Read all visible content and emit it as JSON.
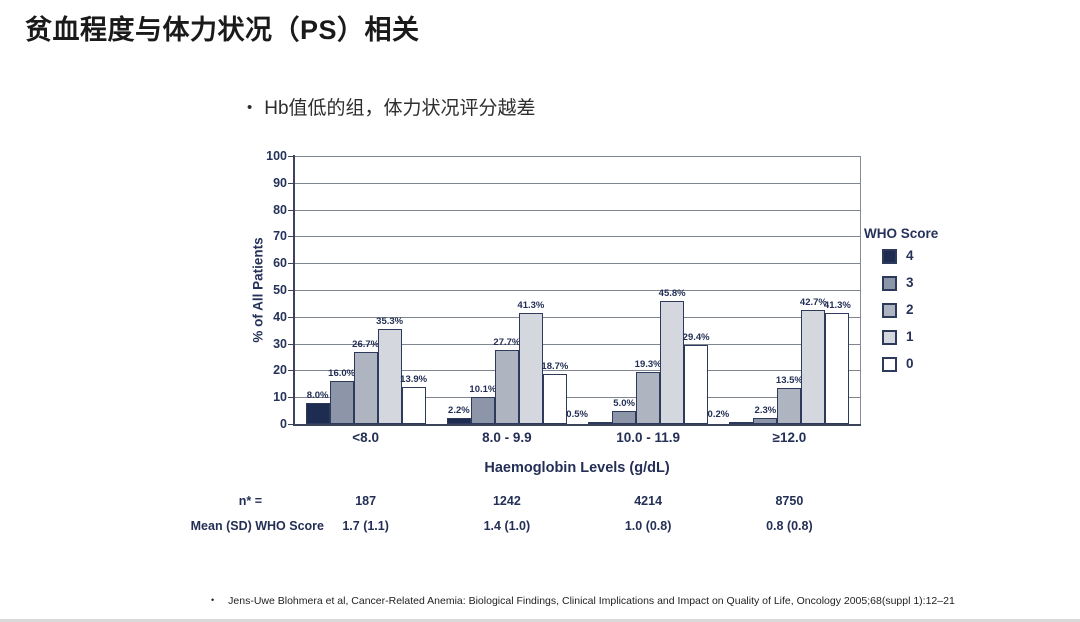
{
  "slide": {
    "title": "贫血程度与体力状况（PS）相关",
    "bullet_char": "•",
    "bullet": "Hb值低的组，体力状况评分越差"
  },
  "chart_data": {
    "type": "bar",
    "title": "",
    "xlabel": "Haemoglobin Levels (g/dL)",
    "ylabel": "% of All Patients",
    "ylim": [
      0,
      100
    ],
    "ytick_step": 10,
    "grid": true,
    "legend_title": "WHO Score",
    "legend_position": "right",
    "categories": [
      "<8.0",
      "8.0 - 9.9",
      "10.0 - 11.9",
      "≥12.0"
    ],
    "series": [
      {
        "name": "4",
        "color": "#1e2c52",
        "values": [
          8.0,
          2.2,
          0.5,
          0.2
        ]
      },
      {
        "name": "3",
        "color": "#8d96a8",
        "values": [
          16.0,
          10.1,
          5.0,
          2.3
        ]
      },
      {
        "name": "2",
        "color": "#aeb4c0",
        "values": [
          26.7,
          27.7,
          19.3,
          13.5
        ]
      },
      {
        "name": "1",
        "color": "#d4d8de",
        "values": [
          35.3,
          41.3,
          45.8,
          42.7
        ]
      },
      {
        "name": "0",
        "color": "#ffffff",
        "values": [
          13.9,
          18.7,
          29.4,
          41.3
        ]
      }
    ],
    "value_label_suffix": "%",
    "table": {
      "rows": [
        {
          "label": "n* =",
          "values": [
            "187",
            "1242",
            "4214",
            "8750"
          ]
        },
        {
          "label": "Mean (SD) WHO Score",
          "values": [
            "1.7 (1.1)",
            "1.4 (1.0)",
            "1.0 (0.8)",
            "0.8 (0.8)"
          ]
        }
      ]
    },
    "colors": {
      "axis": "#3c4459",
      "grid": "#80868f",
      "text": "#232f55"
    }
  },
  "footer": {
    "bullet_char": "•",
    "citation": "Jens-Uwe Blohmera et al, Cancer-Related Anemia: Biological Findings, Clinical Implications and Impact on Quality of Life, Oncology 2005;68(suppl 1):12–21"
  }
}
